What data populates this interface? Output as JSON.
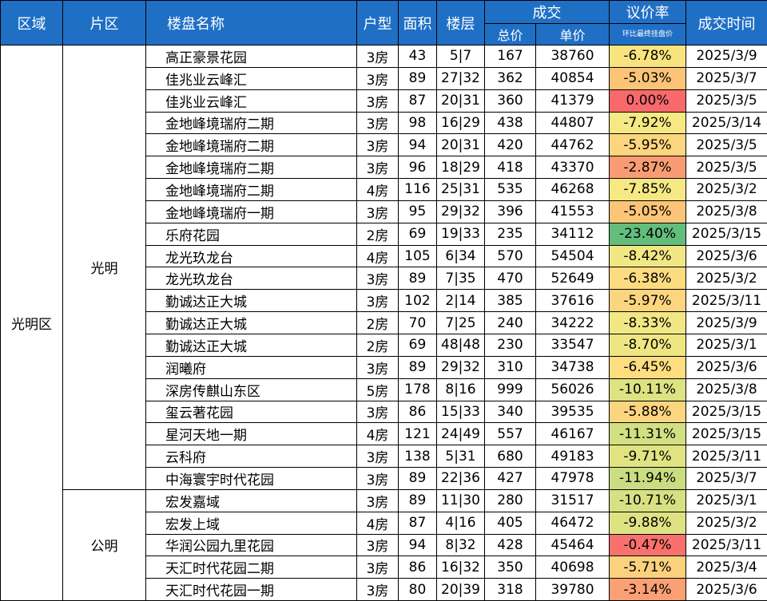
{
  "headers": {
    "region": "区域",
    "area": "片区",
    "name": "楼盘名称",
    "type": "户型",
    "size": "面积",
    "floor": "楼层",
    "deal": "成交",
    "total": "总价",
    "unit": "单价",
    "disc": "议价率",
    "disc_note": "环比最终挂盘价",
    "date": "成交时间"
  },
  "region": "光明区",
  "areas": [
    {
      "name": "光明",
      "rows": [
        {
          "name": "高正豪景花园",
          "type": "3房",
          "size": "43",
          "floor": "5|7",
          "total": "167",
          "unit": "38760",
          "rate": "-6.78%",
          "color": "#f8e47f",
          "date": "2025/3/9"
        },
        {
          "name": "佳兆业云峰汇",
          "type": "3房",
          "size": "89",
          "floor": "27|32",
          "total": "362",
          "unit": "40854",
          "rate": "-5.03%",
          "color": "#fbc477",
          "date": "2025/3/7"
        },
        {
          "name": "佳兆业云峰汇",
          "type": "3房",
          "size": "87",
          "floor": "20|31",
          "total": "360",
          "unit": "41379",
          "rate": "0.00%",
          "color": "#f8696b",
          "date": "2025/3/5"
        },
        {
          "name": "金地峰境瑞府二期",
          "type": "3房",
          "size": "98",
          "floor": "16|29",
          "total": "438",
          "unit": "44807",
          "rate": "-7.92%",
          "color": "#f6e883",
          "date": "2025/3/14"
        },
        {
          "name": "金地峰境瑞府二期",
          "type": "3房",
          "size": "94",
          "floor": "20|31",
          "total": "420",
          "unit": "44762",
          "rate": "-5.95%",
          "color": "#fcd57f",
          "date": "2025/3/5"
        },
        {
          "name": "金地峰境瑞府二期",
          "type": "3房",
          "size": "96",
          "floor": "18|29",
          "total": "418",
          "unit": "43370",
          "rate": "-2.87%",
          "color": "#fa9c73",
          "date": "2025/3/5"
        },
        {
          "name": "金地峰境瑞府二期",
          "type": "4房",
          "size": "116",
          "floor": "25|31",
          "total": "535",
          "unit": "46268",
          "rate": "-7.85%",
          "color": "#f6e883",
          "date": "2025/3/2"
        },
        {
          "name": "金地峰境瑞府一期",
          "type": "3房",
          "size": "95",
          "floor": "29|32",
          "total": "396",
          "unit": "41553",
          "rate": "-5.05%",
          "color": "#fbc477",
          "date": "2025/3/8"
        },
        {
          "name": "乐府花园",
          "type": "2房",
          "size": "69",
          "floor": "19|33",
          "total": "235",
          "unit": "34112",
          "rate": "-23.40%",
          "color": "#63be7b",
          "date": "2025/3/15"
        },
        {
          "name": "龙光玖龙台",
          "type": "4房",
          "size": "105",
          "floor": "6|34",
          "total": "570",
          "unit": "54504",
          "rate": "-8.42%",
          "color": "#f1e784",
          "date": "2025/3/6"
        },
        {
          "name": "龙光玖龙台",
          "type": "3房",
          "size": "89",
          "floor": "7|35",
          "total": "470",
          "unit": "52649",
          "rate": "-6.38%",
          "color": "#fddb80",
          "date": "2025/3/2"
        },
        {
          "name": "勤诚达正大城",
          "type": "3房",
          "size": "102",
          "floor": "2|14",
          "total": "385",
          "unit": "37616",
          "rate": "-5.97%",
          "color": "#fcd57f",
          "date": "2025/3/11"
        },
        {
          "name": "勤诚达正大城",
          "type": "2房",
          "size": "70",
          "floor": "7|25",
          "total": "240",
          "unit": "34222",
          "rate": "-8.33%",
          "color": "#f1e784",
          "date": "2025/3/9"
        },
        {
          "name": "勤诚达正大城",
          "type": "2房",
          "size": "69",
          "floor": "48|48",
          "total": "230",
          "unit": "33547",
          "rate": "-8.70%",
          "color": "#eee683",
          "date": "2025/3/1"
        },
        {
          "name": "润曦府",
          "type": "3房",
          "size": "89",
          "floor": "29|32",
          "total": "310",
          "unit": "34738",
          "rate": "-6.45%",
          "color": "#fedd81",
          "date": "2025/3/6"
        },
        {
          "name": "深房传麒山东区",
          "type": "5房",
          "size": "178",
          "floor": "8|16",
          "total": "999",
          "unit": "56026",
          "rate": "-10.11%",
          "color": "#dde282",
          "date": "2025/3/8"
        },
        {
          "name": "玺云著花园",
          "type": "3房",
          "size": "86",
          "floor": "15|33",
          "total": "340",
          "unit": "39535",
          "rate": "-5.88%",
          "color": "#fcd57f",
          "date": "2025/3/15"
        },
        {
          "name": "星河天地一期",
          "type": "4房",
          "size": "121",
          "floor": "24|49",
          "total": "557",
          "unit": "46167",
          "rate": "-11.31%",
          "color": "#d2df82",
          "date": "2025/3/15"
        },
        {
          "name": "云科府",
          "type": "3房",
          "size": "138",
          "floor": "5|31",
          "total": "680",
          "unit": "49183",
          "rate": "-9.71%",
          "color": "#e1e383",
          "date": "2025/3/11"
        },
        {
          "name": "中海寰宇时代花园",
          "type": "3房",
          "size": "89",
          "floor": "22|36",
          "total": "427",
          "unit": "47978",
          "rate": "-11.94%",
          "color": "#cbdd81",
          "date": "2025/3/7"
        }
      ]
    },
    {
      "name": "公明",
      "rows": [
        {
          "name": "宏发嘉域",
          "type": "3房",
          "size": "89",
          "floor": "11|30",
          "total": "280",
          "unit": "31517",
          "rate": "-10.71%",
          "color": "#d7e082",
          "date": "2025/3/1"
        },
        {
          "name": "宏发上域",
          "type": "4房",
          "size": "87",
          "floor": "4|16",
          "total": "405",
          "unit": "46472",
          "rate": "-9.88%",
          "color": "#dfe283",
          "date": "2025/3/2"
        },
        {
          "name": "华润公园九里花园",
          "type": "3房",
          "size": "94",
          "floor": "8|32",
          "total": "428",
          "unit": "45464",
          "rate": "-0.47%",
          "color": "#f8716c",
          "date": "2025/3/11"
        },
        {
          "name": "天汇时代花园二期",
          "type": "3房",
          "size": "86",
          "floor": "16|32",
          "total": "350",
          "unit": "40698",
          "rate": "-5.71%",
          "color": "#fcd17e",
          "date": "2025/3/4"
        },
        {
          "name": "天汇时代花园一期",
          "type": "3房",
          "size": "80",
          "floor": "20|39",
          "total": "318",
          "unit": "39780",
          "rate": "-3.14%",
          "color": "#faa074",
          "date": "2025/3/6"
        }
      ]
    }
  ]
}
